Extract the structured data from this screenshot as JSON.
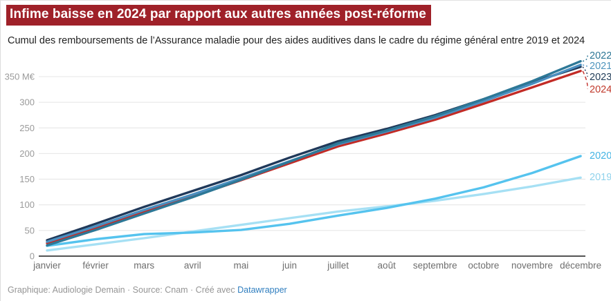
{
  "header": {
    "title": "Infime baisse en 2024 par rapport aux autres années post-réforme",
    "subtitle": "Cumul des remboursements de l’Assurance maladie pour des aides auditives dans le cadre du régime général entre 2019 et 2024"
  },
  "colors": {
    "title_bg": "#9f2129",
    "title_text": "#ffffff",
    "gridline": "#e4e4e4",
    "zero_line": "#1a1a1a",
    "ytick_text": "#9a9a9a",
    "xtick_text": "#6e6e6e",
    "footer_text": "#959595",
    "footer_link": "#2f7ebf"
  },
  "chart_data": {
    "type": "line",
    "x": [
      "janvier",
      "février",
      "mars",
      "avril",
      "mai",
      "juin",
      "juillet",
      "août",
      "septembre",
      "octobre",
      "novembre",
      "décembre"
    ],
    "unit": "M€",
    "ylim": [
      0,
      350
    ],
    "yticks": [
      0,
      50,
      100,
      150,
      200,
      250,
      300,
      350
    ],
    "ytick_top_label": "350 M€",
    "grid": "horizontal",
    "legend_position": "right-edge-direct-labels",
    "series": [
      {
        "name": "2019",
        "color": "#a6e0f4",
        "label_color": "#8fd2ec",
        "values": [
          11,
          23,
          35,
          48,
          61,
          74,
          87,
          97,
          108,
          121,
          136,
          153
        ]
      },
      {
        "name": "2020",
        "color": "#55c3ee",
        "label_color": "#43b4e4",
        "values": [
          20,
          33,
          43,
          46,
          51,
          63,
          79,
          94,
          112,
          134,
          162,
          195
        ]
      },
      {
        "name": "2024",
        "color": "#c22b26",
        "label_color": "#c0392b",
        "values": [
          25,
          55,
          86,
          116,
          148,
          181,
          214,
          239,
          266,
          297,
          329,
          361
        ]
      },
      {
        "name": "2023",
        "color": "#20395a",
        "label_color": "#1f3b57",
        "values": [
          31,
          63,
          96,
          127,
          158,
          192,
          224,
          248,
          275,
          306,
          339,
          369
        ]
      },
      {
        "name": "2021",
        "color": "#4a8fc0",
        "label_color": "#4e94bd",
        "values": [
          28,
          58,
          90,
          120,
          152,
          185,
          218,
          243,
          270,
          302,
          336,
          373
        ]
      },
      {
        "name": "2022",
        "color": "#2d7897",
        "label_color": "#2c7695",
        "values": [
          21,
          51,
          83,
          115,
          149,
          184,
          220,
          245,
          273,
          306,
          341,
          380
        ]
      }
    ]
  },
  "footer": {
    "prefix": "Graphique: Audiologie Demain · Source: Cnam · Créé avec ",
    "link_label": "Datawrapper"
  }
}
